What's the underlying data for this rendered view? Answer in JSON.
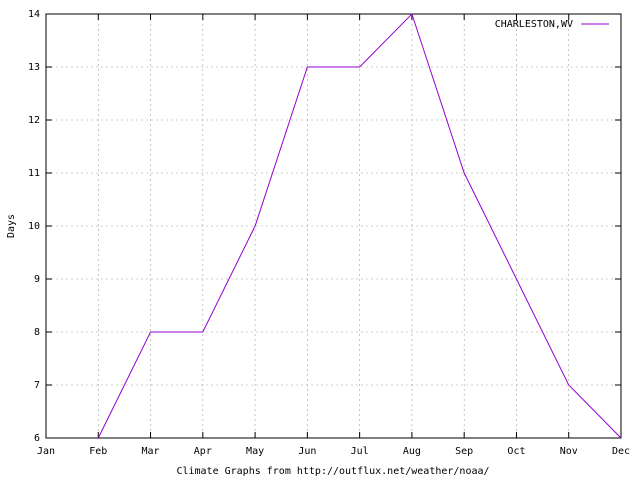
{
  "chart_data": {
    "type": "line",
    "x_label": "Climate Graphs from http://outflux.net/weather/noaa/",
    "y_label": "Days",
    "categories": [
      "Jan",
      "Feb",
      "Mar",
      "Apr",
      "May",
      "Jun",
      "Jul",
      "Aug",
      "Sep",
      "Oct",
      "Nov",
      "Dec"
    ],
    "series": [
      {
        "name": "CHARLESTON,WV",
        "color": "#9400d3",
        "values": [
          null,
          6,
          8,
          8,
          10,
          13,
          13,
          14,
          11,
          9,
          7,
          6
        ]
      }
    ],
    "ylim": [
      6,
      14
    ],
    "yticks": [
      6,
      7,
      8,
      9,
      10,
      11,
      12,
      13,
      14
    ],
    "grid": true,
    "legend": "top-right"
  }
}
